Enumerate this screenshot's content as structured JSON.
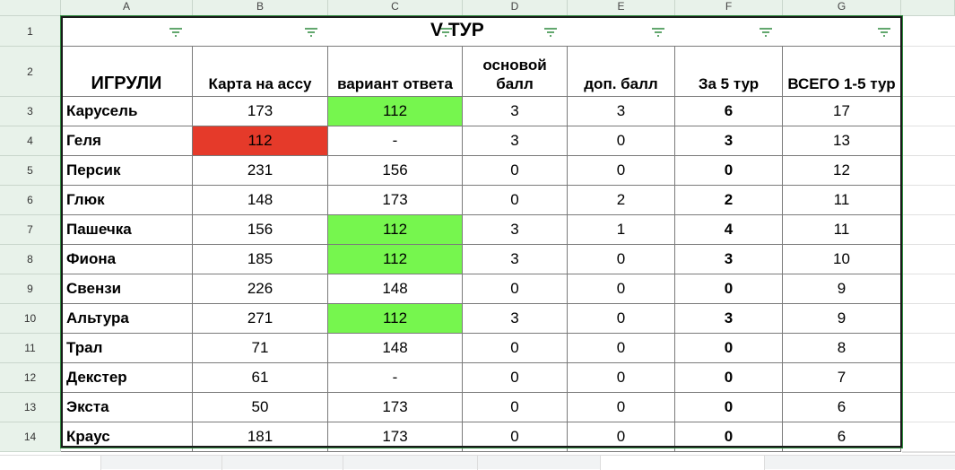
{
  "columns": [
    "A",
    "B",
    "C",
    "D",
    "E",
    "F",
    "G"
  ],
  "title": "V ТУР",
  "headers": [
    "ИГРУЛИ",
    "Карта на ассу",
    "вариант ответа",
    "основой балл",
    "доп. балл",
    "За 5 тур",
    "ВСЕГО 1-5 тур"
  ],
  "rows": [
    {
      "n": "3",
      "name": "Карусель",
      "b": "173",
      "c": "112",
      "d": "3",
      "e": "3",
      "f": "6",
      "g": "17",
      "c_color": "#76f64e"
    },
    {
      "n": "4",
      "name": "Геля",
      "b": "112",
      "c": "-",
      "d": "3",
      "e": "0",
      "f": "3",
      "g": "13",
      "b_color": "#e53a2a"
    },
    {
      "n": "5",
      "name": "Персик",
      "b": "231",
      "c": "156",
      "d": "0",
      "e": "0",
      "f": "0",
      "g": "12"
    },
    {
      "n": "6",
      "name": "Глюк",
      "b": "148",
      "c": "173",
      "d": "0",
      "e": "2",
      "f": "2",
      "g": "11"
    },
    {
      "n": "7",
      "name": "Пашечка",
      "b": "156",
      "c": "112",
      "d": "3",
      "e": "1",
      "f": "4",
      "g": "11",
      "c_color": "#76f64e"
    },
    {
      "n": "8",
      "name": "Фиона",
      "b": "185",
      "c": "112",
      "d": "3",
      "e": "0",
      "f": "3",
      "g": "10",
      "c_color": "#76f64e"
    },
    {
      "n": "9",
      "name": "Свензи",
      "b": "226",
      "c": "148",
      "d": "0",
      "e": "0",
      "f": "0",
      "g": "9"
    },
    {
      "n": "10",
      "name": "Альтура",
      "b": "271",
      "c": "112",
      "d": "3",
      "e": "0",
      "f": "3",
      "g": "9",
      "c_color": "#76f64e"
    },
    {
      "n": "11",
      "name": "Трал",
      "b": "71",
      "c": "148",
      "d": "0",
      "e": "0",
      "f": "0",
      "g": "8"
    },
    {
      "n": "12",
      "name": "Декстер",
      "b": "61",
      "c": "-",
      "d": "0",
      "e": "0",
      "f": "0",
      "g": "7"
    },
    {
      "n": "13",
      "name": "Экста",
      "b": "50",
      "c": "173",
      "d": "0",
      "e": "0",
      "f": "0",
      "g": "6"
    },
    {
      "n": "14",
      "name": "Краус",
      "b": "181",
      "c": "173",
      "d": "0",
      "e": "0",
      "f": "0",
      "g": "6"
    }
  ],
  "row_numbers": [
    "1",
    "2"
  ],
  "colors": {
    "filter": "#2f8a3f",
    "header_bg": "#e8f2ea"
  }
}
